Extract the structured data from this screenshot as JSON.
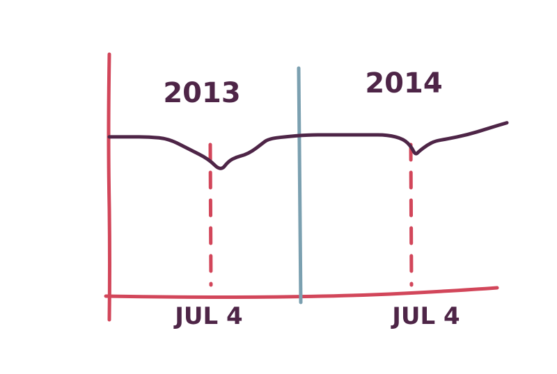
{
  "chart_data": {
    "type": "line",
    "title": "",
    "xlabel": "",
    "ylabel": "",
    "year_labels": [
      "2013",
      "2014"
    ],
    "markers": [
      {
        "label": "JUL 4",
        "year": "2013"
      },
      {
        "label": "JUL 4",
        "year": "2014"
      }
    ],
    "series": [
      {
        "values_note": "",
        "x": [
          0.0,
          0.05,
          0.1,
          0.15,
          0.2,
          0.25,
          0.28,
          0.3,
          0.32,
          0.34,
          0.36,
          0.38,
          0.4,
          0.44,
          0.5,
          0.55,
          0.6,
          0.65,
          0.7,
          0.74,
          0.76,
          0.77,
          0.78,
          0.8,
          0.82,
          0.85,
          0.9,
          0.95,
          1.0
        ],
        "y": [
          0.79,
          0.79,
          0.79,
          0.78,
          0.73,
          0.68,
          0.62,
          0.67,
          0.69,
          0.7,
          0.72,
          0.75,
          0.78,
          0.79,
          0.8,
          0.8,
          0.8,
          0.8,
          0.8,
          0.78,
          0.74,
          0.7,
          0.72,
          0.75,
          0.77,
          0.78,
          0.8,
          0.83,
          0.86
        ]
      }
    ],
    "grid": false,
    "legend": "none"
  },
  "colors": {
    "axis": "#d2465a",
    "series": "#4e2547",
    "divider": "#7ba0b0",
    "marker": "#d2465a",
    "label": "#4e2547"
  }
}
